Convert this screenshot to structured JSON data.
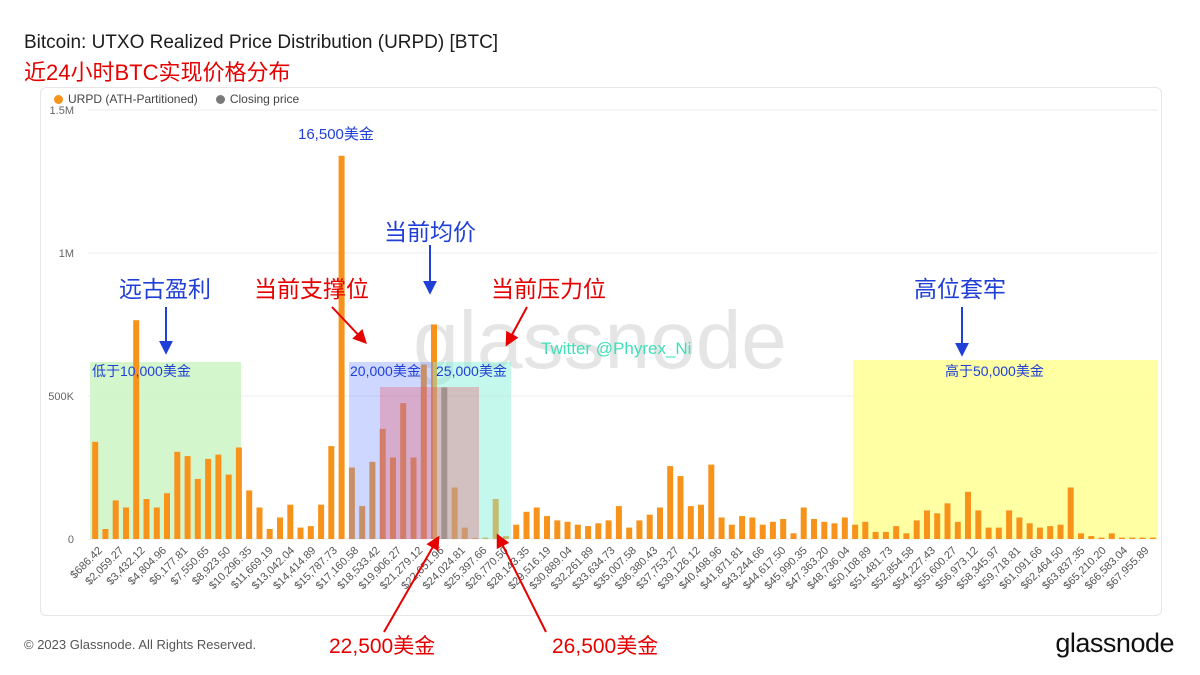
{
  "title": "Bitcoin: UTXO Realized Price Distribution (URPD) [BTC]",
  "subtitle": "近24小时BTC实现价格分布",
  "legend": {
    "urpd": {
      "label": "URPD (ATH-Partitioned)",
      "color": "#f7931a"
    },
    "closing": {
      "label": "Closing price",
      "color": "#7a7a7a"
    }
  },
  "watermark": "glassnode",
  "twitter": "Twitter @Phyrex_Ni",
  "footer": "© 2023 Glassnode. All Rights Reserved.",
  "brand": "glassnode",
  "annotations": {
    "peak_label": "16,500美金",
    "avg": "当前均价",
    "support": "当前支撑位",
    "resistance": "当前压力位",
    "ancient": "远古盈利",
    "high_trap": "高位套牢",
    "below10k": "低于10,000美金",
    "above50k": "高于50,000美金",
    "price20k": "20,000美金",
    "price25k": "25,000美金",
    "price22500": "22,500美金",
    "price26500": "26,500美金"
  },
  "chart_data": {
    "type": "bar",
    "ylim": [
      0,
      1500000
    ],
    "yticks": [
      {
        "v": 0,
        "label": "0"
      },
      {
        "v": 500000,
        "label": "500K"
      },
      {
        "v": 1000000,
        "label": "1M"
      },
      {
        "v": 1500000,
        "label": "1.5M"
      }
    ],
    "xtick_labels": [
      "$686.42",
      "$2,059.27",
      "$3,432.12",
      "$4,804.96",
      "$6,177.81",
      "$7,550.65",
      "$8,923.50",
      "$10,296.35",
      "$11,669.19",
      "$13,042.04",
      "$14,414.89",
      "$15,787.73",
      "$17,160.58",
      "$18,533.42",
      "$19,906.27",
      "$21,279.12",
      "$22,651.96",
      "$24,024.81",
      "$25,397.66",
      "$26,770.50",
      "$28,143.35",
      "$29,516.19",
      "$30,889.04",
      "$32,261.89",
      "$33,634.73",
      "$35,007.58",
      "$36,380.43",
      "$37,753.27",
      "$39,126.12",
      "$40,498.96",
      "$41,871.81",
      "$43,244.66",
      "$44,617.50",
      "$45,990.35",
      "$47,363.20",
      "$48,736.04",
      "$50,108.89",
      "$51,481.73",
      "$52,854.58",
      "$54,227.43",
      "$55,600.27",
      "$56,973.12",
      "$58,345.97",
      "$59,718.81",
      "$61,091.66",
      "$62,464.50",
      "$63,837.35",
      "$65,210.20",
      "$66,583.04",
      "$67,955.89"
    ],
    "closing_bar_index": 34,
    "series": [
      {
        "name": "URPD (ATH-Partitioned)",
        "values": [
          340000,
          35000,
          135000,
          110000,
          765000,
          140000,
          110000,
          160000,
          305000,
          290000,
          210000,
          280000,
          295000,
          225000,
          320000,
          170000,
          110000,
          35000,
          75000,
          120000,
          40000,
          45000,
          120000,
          325000,
          1340000,
          250000,
          115000,
          270000,
          385000,
          285000,
          475000,
          285000,
          610000,
          750000,
          530000,
          180000,
          40000,
          3000,
          5000,
          140000,
          10000,
          50000,
          95000,
          110000,
          80000,
          65000,
          60000,
          50000,
          45000,
          55000,
          65000,
          115000,
          40000,
          65000,
          85000,
          110000,
          255000,
          220000,
          115000,
          120000,
          260000,
          75000,
          50000,
          80000,
          75000,
          50000,
          60000,
          70000,
          20000,
          110000,
          70000,
          60000,
          55000,
          75000,
          50000,
          60000,
          25000,
          25000,
          45000,
          20000,
          65000,
          100000,
          90000,
          125000,
          60000,
          165000,
          100000,
          40000,
          40000,
          100000,
          75000,
          55000,
          40000,
          45000,
          50000,
          180000,
          20000,
          10000,
          5000,
          20000,
          5000,
          5000,
          5000,
          5000
        ]
      }
    ]
  }
}
